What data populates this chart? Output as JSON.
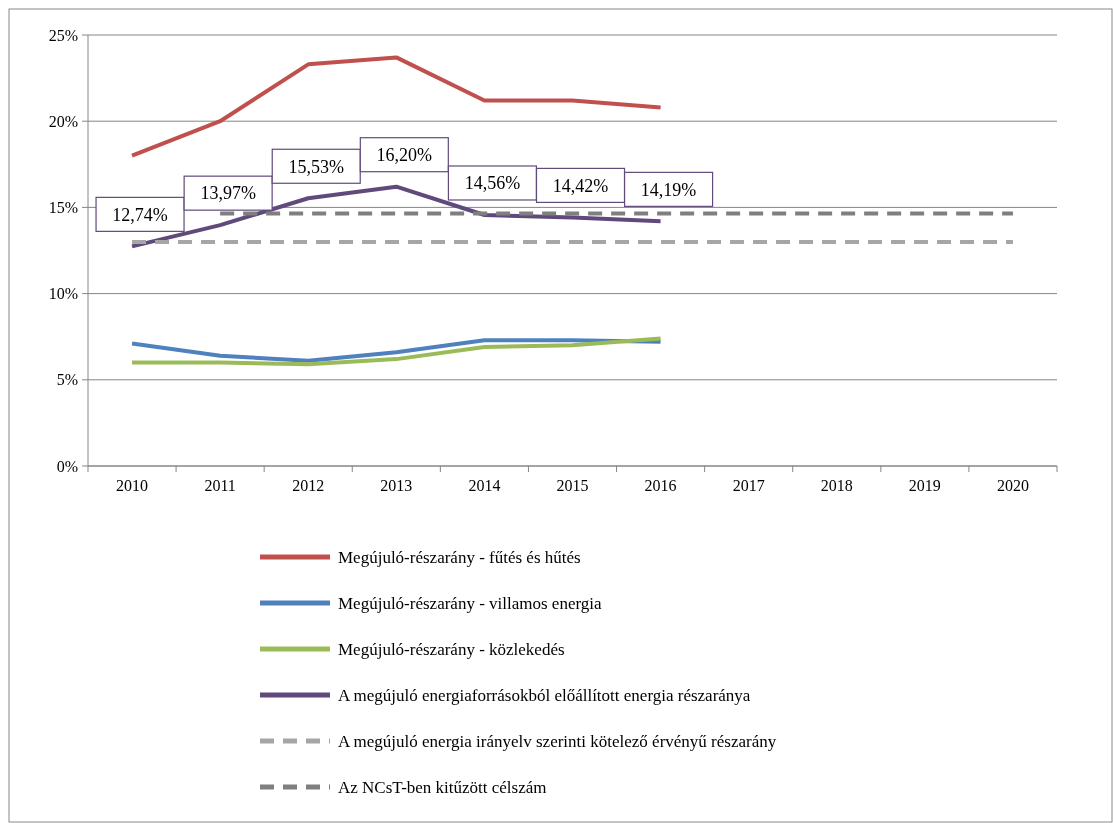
{
  "chart_data": {
    "type": "line",
    "categories": [
      "2010",
      "2011",
      "2012",
      "2013",
      "2014",
      "2015",
      "2016",
      "2017",
      "2018",
      "2019",
      "2020"
    ],
    "ylim": [
      0,
      25
    ],
    "yticks": [
      {
        "value": 0,
        "label": "0%"
      },
      {
        "value": 5,
        "label": "5%"
      },
      {
        "value": 10,
        "label": "10%"
      },
      {
        "value": 15,
        "label": "15%"
      },
      {
        "value": 20,
        "label": "20%"
      },
      {
        "value": 25,
        "label": "25%"
      }
    ],
    "grid": "y",
    "legend": "bottom",
    "marker": "none",
    "series": [
      {
        "name": "Megújuló-részarány - fűtés és hűtés",
        "color": "#c0504d",
        "values": [
          18.0,
          20.0,
          23.3,
          23.7,
          21.2,
          21.2,
          20.8,
          null,
          null,
          null,
          null
        ]
      },
      {
        "name": "Megújuló-részarány - villamos energia",
        "color": "#4f81bd",
        "values": [
          7.1,
          6.4,
          6.1,
          6.6,
          7.3,
          7.3,
          7.2,
          null,
          null,
          null,
          null
        ]
      },
      {
        "name": "Megújuló-részarány - közlekedés",
        "color": "#9bbb59",
        "values": [
          6.0,
          6.0,
          5.9,
          6.2,
          6.9,
          7.0,
          7.4,
          null,
          null,
          null,
          null
        ]
      },
      {
        "name": "A megújuló energiaforrásokból előállított energia részaránya",
        "color": "#604a7b",
        "values": [
          12.74,
          13.97,
          15.53,
          16.2,
          14.56,
          14.42,
          14.19,
          null,
          null,
          null,
          null
        ],
        "value_labels": [
          "12,74%",
          "13,97%",
          "15,53%",
          "16,20%",
          "14,56%",
          "14,42%",
          "14,19%",
          null,
          null,
          null,
          null
        ]
      },
      {
        "name": "A megújuló energia irányelv szerinti kötelező érvényű részarány",
        "color": "#a6a6a6",
        "line_style": "dashed",
        "values": [
          13,
          13,
          13,
          13,
          13,
          13,
          13,
          13,
          13,
          13,
          13
        ]
      },
      {
        "name": "Az NCsT-ben kitűzött célszám",
        "color": "#7f7f7f",
        "line_style": "dashed",
        "values": [
          null,
          14.65,
          14.65,
          14.65,
          14.65,
          14.65,
          14.65,
          14.65,
          14.65,
          14.65,
          14.65
        ]
      }
    ]
  }
}
